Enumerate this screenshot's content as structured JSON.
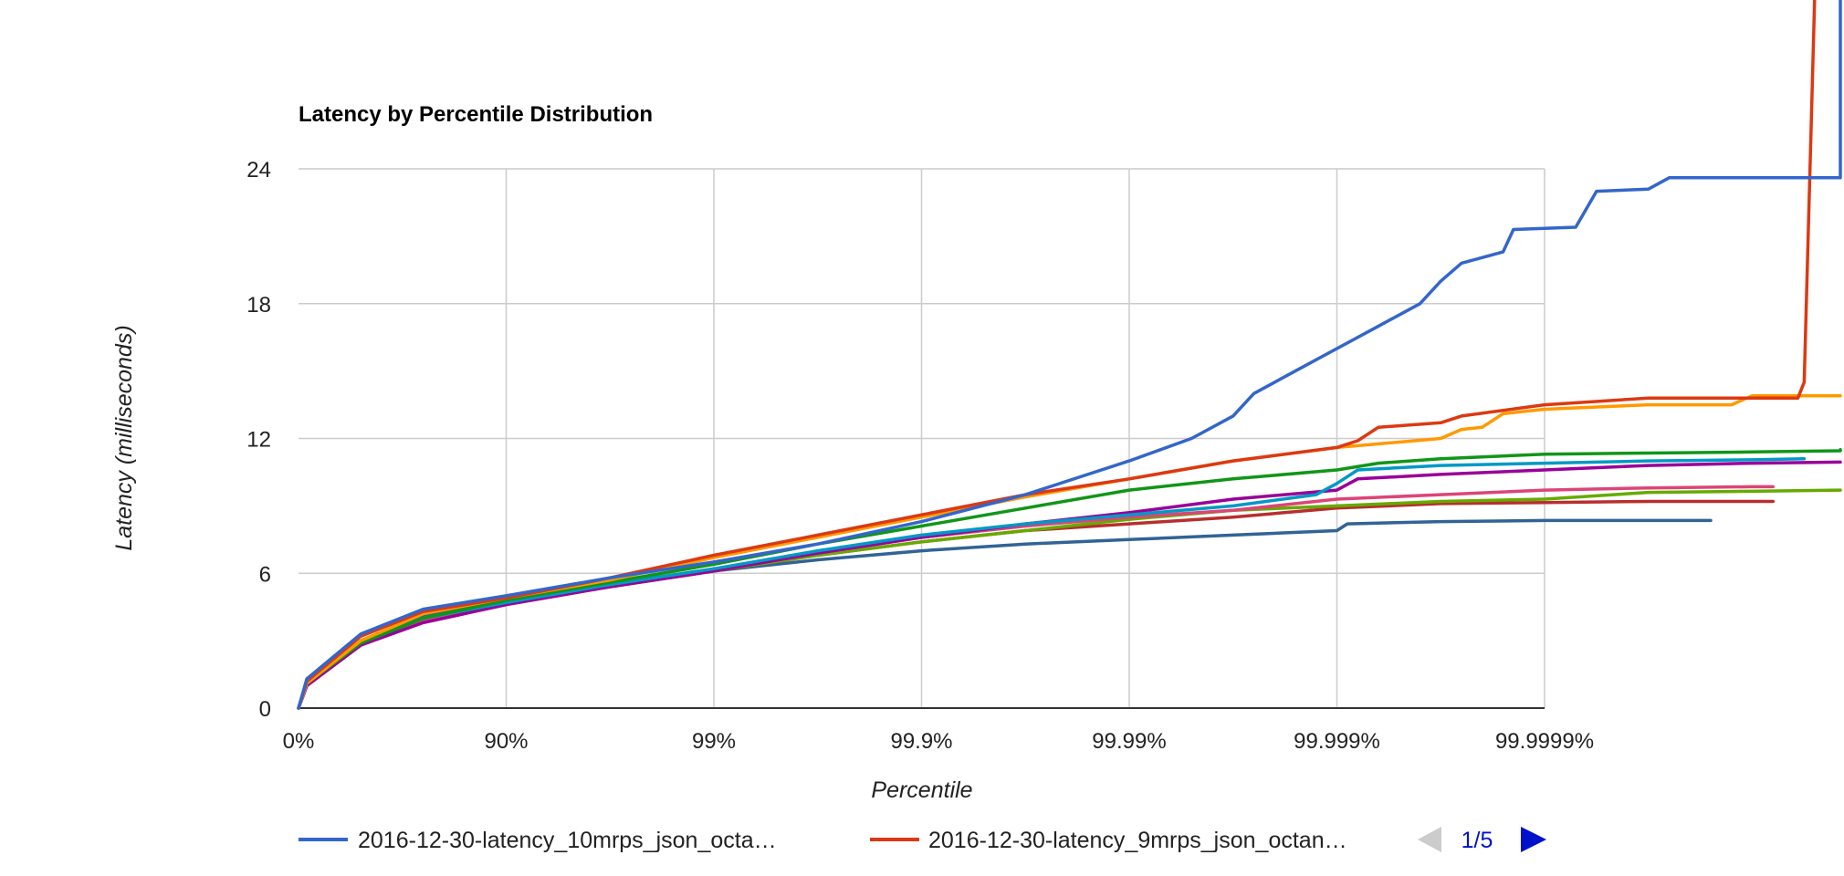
{
  "chart_data": {
    "type": "line",
    "title": "Latency by Percentile Distribution",
    "xlabel": "Percentile",
    "ylabel": "Latency (milliseconds)",
    "x_scale": "log-percentile (tick = 1 additional nine)",
    "x_ticks": [
      "0%",
      "90%",
      "99%",
      "99.9%",
      "99.99%",
      "99.999%",
      "99.9999%"
    ],
    "y_ticks": [
      0,
      6,
      12,
      18,
      24
    ],
    "ylim": [
      0,
      24
    ],
    "grid": true,
    "legend_position": "bottom",
    "legend": {
      "entries": [
        {
          "label": "2016-12-30-latency_10mrps_json_octa…",
          "color": "#3366cc"
        },
        {
          "label": "2016-12-30-latency_9mrps_json_octan…",
          "color": "#dc3912"
        }
      ],
      "pager": "1/5",
      "prev_color": "#cccccc",
      "next_color": "#0011cc"
    },
    "series": [
      {
        "color": "#3366cc",
        "points": [
          [
            0,
            0
          ],
          [
            0.04,
            1.3
          ],
          [
            0.3,
            3.3
          ],
          [
            0.6,
            4.4
          ],
          [
            1,
            5.0
          ],
          [
            1.5,
            5.8
          ],
          [
            2,
            6.5
          ],
          [
            2.5,
            7.3
          ],
          [
            3,
            8.3
          ],
          [
            3.5,
            9.5
          ],
          [
            4,
            11.0
          ],
          [
            4.3,
            12.0
          ],
          [
            4.5,
            13.0
          ],
          [
            4.6,
            14.0
          ],
          [
            4.8,
            15.0
          ],
          [
            5.0,
            16.0
          ],
          [
            5.2,
            17.0
          ],
          [
            5.4,
            18.0
          ],
          [
            5.5,
            19.0
          ],
          [
            5.6,
            19.8
          ],
          [
            5.8,
            20.3
          ],
          [
            5.85,
            21.3
          ],
          [
            6.15,
            21.4
          ],
          [
            6.25,
            23.0
          ],
          [
            6.5,
            23.1
          ],
          [
            6.6,
            23.6
          ],
          [
            7.5,
            23.6
          ],
          [
            7.6,
            23.6
          ],
          [
            7.63,
            40
          ]
        ]
      },
      {
        "color": "#dc3912",
        "points": [
          [
            0,
            0
          ],
          [
            0.04,
            1.2
          ],
          [
            0.3,
            3.2
          ],
          [
            0.6,
            4.3
          ],
          [
            1,
            4.9
          ],
          [
            1.5,
            5.8
          ],
          [
            2,
            6.8
          ],
          [
            2.5,
            7.7
          ],
          [
            3,
            8.6
          ],
          [
            3.5,
            9.5
          ],
          [
            4,
            10.2
          ],
          [
            4.5,
            11.0
          ],
          [
            5.0,
            11.6
          ],
          [
            5.1,
            11.9
          ],
          [
            5.2,
            12.5
          ],
          [
            5.5,
            12.7
          ],
          [
            5.6,
            13.0
          ],
          [
            6,
            13.5
          ],
          [
            6.5,
            13.8
          ],
          [
            7.22,
            13.8
          ],
          [
            7.25,
            14.5
          ],
          [
            7.3,
            40
          ]
        ]
      },
      {
        "color": "#ff9900",
        "points": [
          [
            0,
            0
          ],
          [
            0.04,
            1.1
          ],
          [
            0.3,
            3.0
          ],
          [
            0.6,
            4.2
          ],
          [
            1,
            4.9
          ],
          [
            1.5,
            5.7
          ],
          [
            2,
            6.7
          ],
          [
            2.5,
            7.6
          ],
          [
            3,
            8.5
          ],
          [
            3.5,
            9.4
          ],
          [
            4,
            10.2
          ],
          [
            4.5,
            11.0
          ],
          [
            5.0,
            11.6
          ],
          [
            5.5,
            12.0
          ],
          [
            5.6,
            12.4
          ],
          [
            5.7,
            12.5
          ],
          [
            5.8,
            13.1
          ],
          [
            6,
            13.3
          ],
          [
            6.5,
            13.5
          ],
          [
            6.9,
            13.5
          ],
          [
            7.0,
            13.9
          ],
          [
            7.5,
            13.9
          ],
          [
            8,
            13.9
          ]
        ]
      },
      {
        "color": "#109618",
        "points": [
          [
            0,
            0
          ],
          [
            0.04,
            1.1
          ],
          [
            0.3,
            2.9
          ],
          [
            0.6,
            4.0
          ],
          [
            1,
            4.8
          ],
          [
            1.5,
            5.6
          ],
          [
            2,
            6.4
          ],
          [
            2.5,
            7.3
          ],
          [
            3,
            8.1
          ],
          [
            3.5,
            8.9
          ],
          [
            4,
            9.7
          ],
          [
            4.5,
            10.2
          ],
          [
            5,
            10.6
          ],
          [
            5.2,
            10.9
          ],
          [
            5.5,
            11.1
          ],
          [
            6,
            11.3
          ],
          [
            6.5,
            11.35
          ],
          [
            7,
            11.4
          ],
          [
            7.5,
            11.45
          ],
          [
            8,
            11.5
          ]
        ]
      },
      {
        "color": "#0099c6",
        "points": [
          [
            0,
            0
          ],
          [
            0.04,
            1.1
          ],
          [
            0.3,
            2.9
          ],
          [
            0.6,
            4.0
          ],
          [
            1,
            4.7
          ],
          [
            1.5,
            5.5
          ],
          [
            2,
            6.2
          ],
          [
            2.5,
            7.0
          ],
          [
            3,
            7.7
          ],
          [
            3.5,
            8.2
          ],
          [
            4,
            8.6
          ],
          [
            4.5,
            9.0
          ],
          [
            4.9,
            9.5
          ],
          [
            5.0,
            10.0
          ],
          [
            5.1,
            10.6
          ],
          [
            5.5,
            10.8
          ],
          [
            6,
            10.9
          ],
          [
            6.5,
            11.0
          ],
          [
            7,
            11.05
          ],
          [
            7.25,
            11.1
          ]
        ]
      },
      {
        "color": "#990099",
        "points": [
          [
            0,
            0
          ],
          [
            0.04,
            1.0
          ],
          [
            0.3,
            2.8
          ],
          [
            0.6,
            3.8
          ],
          [
            1,
            4.6
          ],
          [
            1.5,
            5.4
          ],
          [
            2,
            6.1
          ],
          [
            2.5,
            6.9
          ],
          [
            3,
            7.6
          ],
          [
            3.5,
            8.2
          ],
          [
            4,
            8.7
          ],
          [
            4.5,
            9.3
          ],
          [
            5,
            9.7
          ],
          [
            5.1,
            10.2
          ],
          [
            5.5,
            10.4
          ],
          [
            6,
            10.6
          ],
          [
            6.5,
            10.8
          ],
          [
            7,
            10.9
          ],
          [
            7.5,
            10.95
          ],
          [
            8,
            10.95
          ]
        ]
      },
      {
        "color": "#dd4477",
        "points": [
          [
            0,
            0
          ],
          [
            0.04,
            1.0
          ],
          [
            0.3,
            2.8
          ],
          [
            0.6,
            3.9
          ],
          [
            1,
            4.7
          ],
          [
            1.5,
            5.5
          ],
          [
            2,
            6.2
          ],
          [
            2.5,
            6.9
          ],
          [
            3,
            7.6
          ],
          [
            3.5,
            8.1
          ],
          [
            4,
            8.5
          ],
          [
            4.5,
            8.8
          ],
          [
            5,
            9.3
          ],
          [
            5.5,
            9.5
          ],
          [
            6,
            9.7
          ],
          [
            6.5,
            9.8
          ],
          [
            7,
            9.85
          ],
          [
            7.1,
            9.85
          ]
        ]
      },
      {
        "color": "#66aa00",
        "points": [
          [
            0,
            0
          ],
          [
            0.04,
            1.1
          ],
          [
            0.3,
            2.9
          ],
          [
            0.6,
            4.0
          ],
          [
            1,
            4.7
          ],
          [
            1.5,
            5.4
          ],
          [
            2,
            6.1
          ],
          [
            2.5,
            6.8
          ],
          [
            3,
            7.4
          ],
          [
            3.5,
            7.9
          ],
          [
            4,
            8.4
          ],
          [
            4.5,
            8.8
          ],
          [
            5,
            9.0
          ],
          [
            5.5,
            9.2
          ],
          [
            6,
            9.3
          ],
          [
            6.5,
            9.6
          ],
          [
            7,
            9.65
          ],
          [
            7.5,
            9.7
          ],
          [
            8,
            9.7
          ]
        ]
      },
      {
        "color": "#b82e2e",
        "points": [
          [
            0,
            0
          ],
          [
            0.04,
            1.0
          ],
          [
            0.3,
            2.9
          ],
          [
            0.6,
            4.0
          ],
          [
            1,
            4.7
          ],
          [
            1.5,
            5.4
          ],
          [
            2,
            6.1
          ],
          [
            2.5,
            6.8
          ],
          [
            3,
            7.4
          ],
          [
            3.5,
            7.9
          ],
          [
            4,
            8.2
          ],
          [
            4.5,
            8.5
          ],
          [
            5,
            8.9
          ],
          [
            5.5,
            9.1
          ],
          [
            6,
            9.15
          ],
          [
            6.5,
            9.2
          ],
          [
            7,
            9.2
          ],
          [
            7.1,
            9.2
          ]
        ]
      },
      {
        "color": "#316395",
        "points": [
          [
            0,
            0
          ],
          [
            0.04,
            1.1
          ],
          [
            0.3,
            3.0
          ],
          [
            0.6,
            4.1
          ],
          [
            1,
            4.8
          ],
          [
            1.5,
            5.6
          ],
          [
            2,
            6.1
          ],
          [
            2.5,
            6.6
          ],
          [
            3,
            7.0
          ],
          [
            3.5,
            7.3
          ],
          [
            4,
            7.5
          ],
          [
            4.5,
            7.7
          ],
          [
            5,
            7.9
          ],
          [
            5.05,
            8.2
          ],
          [
            5.5,
            8.3
          ],
          [
            6,
            8.35
          ],
          [
            6.5,
            8.35
          ],
          [
            6.8,
            8.35
          ]
        ]
      }
    ]
  }
}
